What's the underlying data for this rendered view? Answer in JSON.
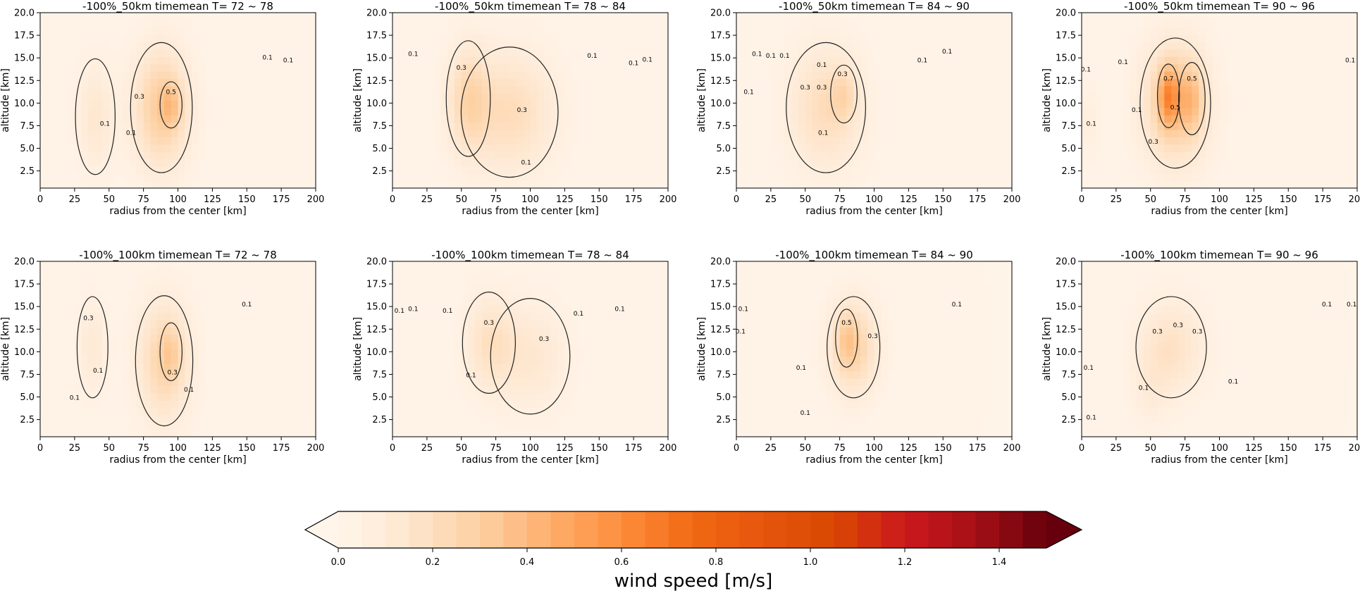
{
  "figure": {
    "panels": [
      {
        "title": "-100%_50km timemean T= 72 ~ 78"
      },
      {
        "title": "-100%_50km timemean T= 78 ~ 84"
      },
      {
        "title": "-100%_50km timemean T= 84 ~ 90"
      },
      {
        "title": "-100%_50km timemean T= 90 ~ 96"
      },
      {
        "title": "-100%_100km timemean T= 72 ~ 78"
      },
      {
        "title": "-100%_100km timemean T= 78 ~ 84"
      },
      {
        "title": "-100%_100km timemean T= 84 ~ 90"
      },
      {
        "title": "-100%_100km timemean T= 90 ~ 96"
      }
    ],
    "xlabel": "radius from the center [km]",
    "ylabel": "altitude [km]",
    "x_ticks": [
      "0",
      "25",
      "50",
      "75",
      "100",
      "125",
      "150",
      "175",
      "200"
    ],
    "y_ticks": [
      "2.5",
      "5.0",
      "7.5",
      "10.0",
      "12.5",
      "15.0",
      "17.5",
      "20.0"
    ],
    "colorbar": {
      "label": "wind speed [m/s]",
      "ticks": [
        "0.0",
        "0.2",
        "0.4",
        "0.6",
        "0.8",
        "1.0",
        "1.2",
        "1.4"
      ],
      "colors": [
        "#fff5eb",
        "#fee6ce",
        "#fdd0a2",
        "#fdae6b",
        "#fd8d3c",
        "#f16913",
        "#e6550d",
        "#d94801",
        "#cb181d",
        "#a50f15",
        "#67000d"
      ]
    }
  },
  "chart_data": [
    {
      "type": "heatmap",
      "title": "-100%_50km timemean T= 72 ~ 78",
      "xlim": [
        0,
        200
      ],
      "ylim": [
        0.6,
        20
      ],
      "blobs": [
        {
          "x": 40,
          "y": 8.5,
          "a": 0.12,
          "sx": 9,
          "sy": 4
        },
        {
          "x": 88,
          "y": 9.5,
          "a": 0.3,
          "sx": 14,
          "sy": 4.5
        },
        {
          "x": 95,
          "y": 9.8,
          "a": 0.14,
          "sx": 5,
          "sy": 1.6
        }
      ],
      "contour_labels": [
        {
          "v": "0.1",
          "x": 47,
          "y": 7.5
        },
        {
          "v": "0.1",
          "x": 66,
          "y": 6.5
        },
        {
          "v": "0.3",
          "x": 72,
          "y": 10.5
        },
        {
          "v": "0.5",
          "x": 95,
          "y": 11.0
        },
        {
          "v": "0.1",
          "x": 165,
          "y": 14.8
        },
        {
          "v": "0.1",
          "x": 180,
          "y": 14.5
        }
      ]
    },
    {
      "type": "heatmap",
      "title": "-100%_50km timemean T= 78 ~ 84",
      "xlim": [
        0,
        200
      ],
      "ylim": [
        0.6,
        20
      ],
      "blobs": [
        {
          "x": 55,
          "y": 10.5,
          "a": 0.2,
          "sx": 10,
          "sy": 4
        },
        {
          "x": 85,
          "y": 9.0,
          "a": 0.2,
          "sx": 22,
          "sy": 4.5
        }
      ],
      "contour_labels": [
        {
          "v": "0.1",
          "x": 15,
          "y": 15.2
        },
        {
          "v": "0.3",
          "x": 50,
          "y": 13.7
        },
        {
          "v": "0.3",
          "x": 94,
          "y": 9.0
        },
        {
          "v": "0.1",
          "x": 97,
          "y": 3.2
        },
        {
          "v": "0.1",
          "x": 145,
          "y": 15.0
        },
        {
          "v": "0.1",
          "x": 175,
          "y": 14.2
        },
        {
          "v": "0.1",
          "x": 185,
          "y": 14.6
        }
      ]
    },
    {
      "type": "heatmap",
      "title": "-100%_50km timemean T= 84 ~ 90",
      "xlim": [
        0,
        200
      ],
      "ylim": [
        0.6,
        20
      ],
      "blobs": [
        {
          "x": 65,
          "y": 9.5,
          "a": 0.2,
          "sx": 18,
          "sy": 4.5
        },
        {
          "x": 78,
          "y": 11.0,
          "a": 0.12,
          "sx": 6,
          "sy": 2
        }
      ],
      "contour_labels": [
        {
          "v": "0.1",
          "x": 9,
          "y": 11.0
        },
        {
          "v": "0.1",
          "x": 25,
          "y": 15.0
        },
        {
          "v": "0.1",
          "x": 35,
          "y": 15.0
        },
        {
          "v": "0.1",
          "x": 15,
          "y": 15.2
        },
        {
          "v": "0.3",
          "x": 50,
          "y": 11.5
        },
        {
          "v": "0.3",
          "x": 62,
          "y": 11.5
        },
        {
          "v": "0.1",
          "x": 62,
          "y": 14.0
        },
        {
          "v": "0.3",
          "x": 77,
          "y": 13.0
        },
        {
          "v": "0.1",
          "x": 63,
          "y": 6.5
        },
        {
          "v": "0.1",
          "x": 135,
          "y": 14.5
        },
        {
          "v": "0.1",
          "x": 153,
          "y": 15.5
        }
      ]
    },
    {
      "type": "heatmap",
      "title": "-100%_50km timemean T= 90 ~ 96",
      "xlim": [
        0,
        200
      ],
      "ylim": [
        0.6,
        20
      ],
      "blobs": [
        {
          "x": 68,
          "y": 10.0,
          "a": 0.32,
          "sx": 16,
          "sy": 4.5
        },
        {
          "x": 63,
          "y": 10.8,
          "a": 0.35,
          "sx": 5,
          "sy": 2.2
        },
        {
          "x": 80,
          "y": 10.5,
          "a": 0.18,
          "sx": 6,
          "sy": 2.5
        },
        {
          "x": 5,
          "y": 8.0,
          "a": 0.05,
          "sx": 6,
          "sy": 3
        }
      ],
      "contour_labels": [
        {
          "v": "0.1",
          "x": 3,
          "y": 13.5
        },
        {
          "v": "0.1",
          "x": 30,
          "y": 14.3
        },
        {
          "v": "0.1",
          "x": 40,
          "y": 9.0
        },
        {
          "v": "0.1",
          "x": 7,
          "y": 7.5
        },
        {
          "v": "0.3",
          "x": 52,
          "y": 5.5
        },
        {
          "v": "0.7",
          "x": 63,
          "y": 12.5
        },
        {
          "v": "0.5",
          "x": 80,
          "y": 12.5
        },
        {
          "v": "0.5",
          "x": 68,
          "y": 9.3
        },
        {
          "v": "0.1",
          "x": 195,
          "y": 14.5
        }
      ]
    },
    {
      "type": "heatmap",
      "title": "-100%_100km timemean T= 72 ~ 78",
      "xlim": [
        0,
        200
      ],
      "ylim": [
        0.6,
        20
      ],
      "blobs": [
        {
          "x": 38,
          "y": 10.5,
          "a": 0.1,
          "sx": 7,
          "sy": 3.5
        },
        {
          "x": 90,
          "y": 9.0,
          "a": 0.25,
          "sx": 13,
          "sy": 4.5
        },
        {
          "x": 95,
          "y": 10.0,
          "a": 0.1,
          "sx": 5,
          "sy": 2
        }
      ],
      "contour_labels": [
        {
          "v": "0.3",
          "x": 35,
          "y": 13.5
        },
        {
          "v": "0.1",
          "x": 42,
          "y": 7.7
        },
        {
          "v": "0.1",
          "x": 25,
          "y": 4.7
        },
        {
          "v": "0.3",
          "x": 96,
          "y": 7.5
        },
        {
          "v": "0.1",
          "x": 108,
          "y": 5.6
        },
        {
          "v": "0.1",
          "x": 150,
          "y": 15.0
        }
      ]
    },
    {
      "type": "heatmap",
      "title": "-100%_100km timemean T= 78 ~ 84",
      "xlim": [
        0,
        200
      ],
      "ylim": [
        0.6,
        20
      ],
      "blobs": [
        {
          "x": 70,
          "y": 11.0,
          "a": 0.16,
          "sx": 12,
          "sy": 3.5
        },
        {
          "x": 100,
          "y": 9.5,
          "a": 0.12,
          "sx": 18,
          "sy": 4
        }
      ],
      "contour_labels": [
        {
          "v": "0.1",
          "x": 5,
          "y": 14.3
        },
        {
          "v": "0.1",
          "x": 15,
          "y": 14.5
        },
        {
          "v": "0.1",
          "x": 40,
          "y": 14.3
        },
        {
          "v": "0.1",
          "x": 57,
          "y": 7.2
        },
        {
          "v": "0.3",
          "x": 70,
          "y": 13.0
        },
        {
          "v": "0.3",
          "x": 110,
          "y": 11.2
        },
        {
          "v": "0.1",
          "x": 135,
          "y": 14.0
        },
        {
          "v": "0.1",
          "x": 165,
          "y": 14.5
        }
      ]
    },
    {
      "type": "heatmap",
      "title": "-100%_100km timemean T= 84 ~ 90",
      "xlim": [
        0,
        200
      ],
      "ylim": [
        0.6,
        20
      ],
      "blobs": [
        {
          "x": 85,
          "y": 10.5,
          "a": 0.26,
          "sx": 12,
          "sy": 3.5
        },
        {
          "x": 80,
          "y": 11.5,
          "a": 0.12,
          "sx": 5,
          "sy": 2
        }
      ],
      "contour_labels": [
        {
          "v": "0.1",
          "x": 5,
          "y": 14.5
        },
        {
          "v": "0.1",
          "x": 3,
          "y": 12.0
        },
        {
          "v": "0.1",
          "x": 47,
          "y": 8.0
        },
        {
          "v": "0.1",
          "x": 50,
          "y": 3.0
        },
        {
          "v": "0.5",
          "x": 80,
          "y": 13.0
        },
        {
          "v": "0.3",
          "x": 99,
          "y": 11.5
        },
        {
          "v": "0.1",
          "x": 160,
          "y": 15.0
        }
      ]
    },
    {
      "type": "heatmap",
      "title": "-100%_100km timemean T= 90 ~ 96",
      "xlim": [
        0,
        200
      ],
      "ylim": [
        0.6,
        20
      ],
      "blobs": [
        {
          "x": 65,
          "y": 10.5,
          "a": 0.16,
          "sx": 16,
          "sy": 3.5
        },
        {
          "x": 50,
          "y": 6.0,
          "a": 0.06,
          "sx": 10,
          "sy": 3
        }
      ],
      "contour_labels": [
        {
          "v": "0.1",
          "x": 5,
          "y": 8.0
        },
        {
          "v": "0.1",
          "x": 7,
          "y": 2.5
        },
        {
          "v": "0.1",
          "x": 45,
          "y": 5.8
        },
        {
          "v": "0.3",
          "x": 55,
          "y": 12.0
        },
        {
          "v": "0.3",
          "x": 70,
          "y": 12.7
        },
        {
          "v": "0.3",
          "x": 84,
          "y": 12.0
        },
        {
          "v": "0.1",
          "x": 110,
          "y": 6.5
        },
        {
          "v": "0.1",
          "x": 178,
          "y": 15.0
        },
        {
          "v": "0.1",
          "x": 196,
          "y": 15.0
        }
      ]
    }
  ]
}
